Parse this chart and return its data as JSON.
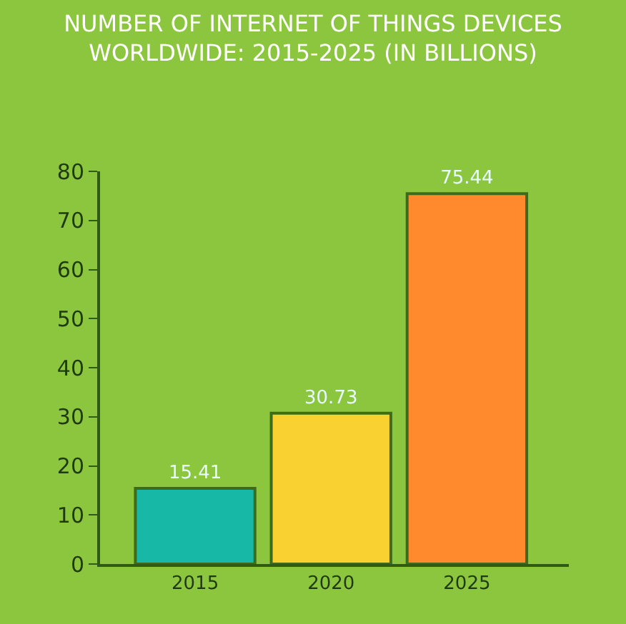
{
  "chart_data": {
    "type": "bar",
    "title": "NUMBER OF INTERNET OF THINGS DEVICES\nWORLDWIDE: 2015-2025 (IN BILLIONS)",
    "categories": [
      "2015",
      "2020",
      "2025"
    ],
    "values": [
      15.41,
      30.73,
      75.44
    ],
    "colors": [
      "#17b8a6",
      "#f9d232",
      "#ff8a2e"
    ],
    "ylim": [
      0,
      80
    ],
    "yticks": [
      0,
      10,
      20,
      30,
      40,
      50,
      60,
      70,
      80
    ],
    "data_labels": true,
    "grid": false
  }
}
